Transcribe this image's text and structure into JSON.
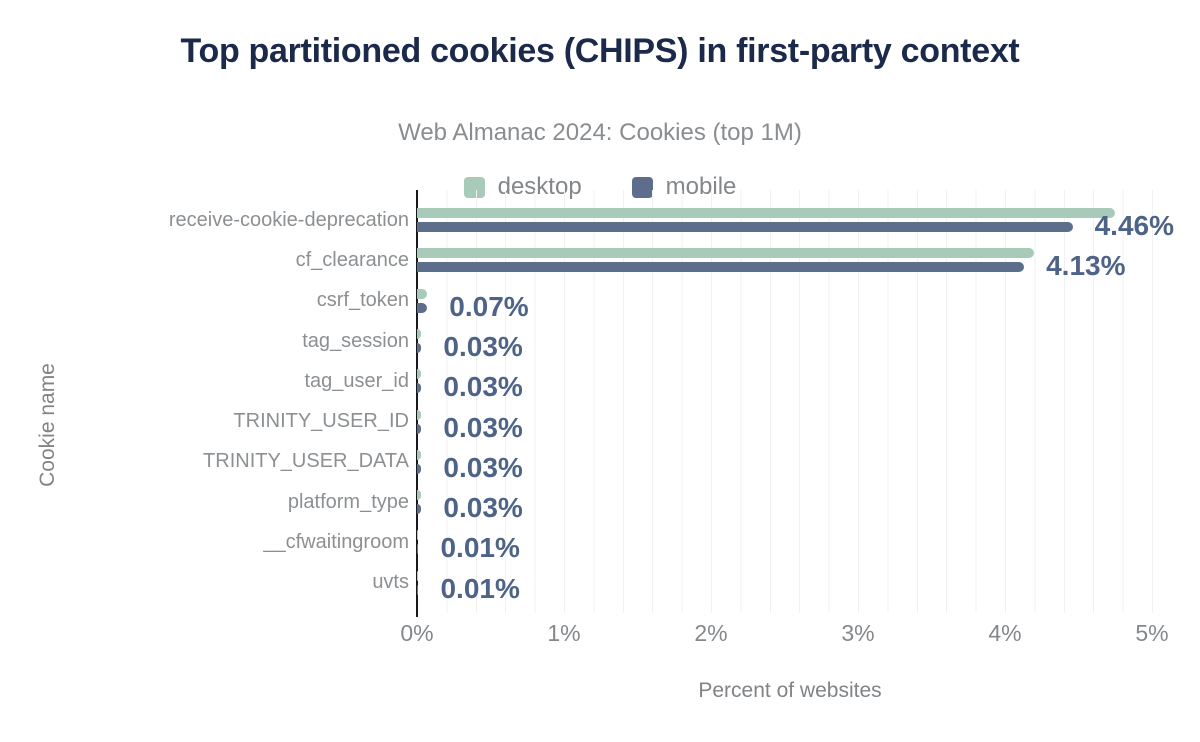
{
  "chart_data": {
    "type": "bar",
    "orientation": "horizontal",
    "title": "Top partitioned cookies (CHIPS) in first-party context",
    "subtitle": "Web Almanac 2024: Cookies (top 1M)",
    "xlabel": "Percent of websites",
    "ylabel": "Cookie name",
    "xlim": [
      0,
      5
    ],
    "x_tick_labels": [
      "0%",
      "1%",
      "2%",
      "3%",
      "4%",
      "5%"
    ],
    "x_tick_values": [
      0,
      1,
      2,
      3,
      4,
      5
    ],
    "grid": true,
    "minor_grid_interval": 0.2,
    "legend_position": "top",
    "categories": [
      "receive-cookie-deprecation",
      "cf_clearance",
      "csrf_token",
      "tag_session",
      "tag_user_id",
      "TRINITY_USER_ID",
      "TRINITY_USER_DATA",
      "platform_type",
      "__cfwaitingroom",
      "uvts"
    ],
    "series": [
      {
        "name": "desktop",
        "color": "#a7cbb8",
        "values": [
          4.75,
          4.2,
          0.07,
          0.03,
          0.03,
          0.03,
          0.03,
          0.03,
          0.01,
          0.01
        ]
      },
      {
        "name": "mobile",
        "color": "#5d6e8c",
        "values": [
          4.46,
          4.13,
          0.07,
          0.03,
          0.03,
          0.03,
          0.03,
          0.03,
          0.01,
          0.01
        ]
      }
    ],
    "data_labels": {
      "series": "mobile",
      "color": "#4e6388",
      "values": [
        "4.46%",
        "4.13%",
        "0.07%",
        "0.03%",
        "0.03%",
        "0.03%",
        "0.03%",
        "0.03%",
        "0.01%",
        "0.01%"
      ]
    },
    "colors": {
      "title": "#1b2a4a",
      "subtitle": "#8a8d90",
      "axis_line": "#17191c",
      "gridline": "#f1f1f4",
      "tick_label": "#85888b",
      "category_label": "#8c9093"
    }
  }
}
